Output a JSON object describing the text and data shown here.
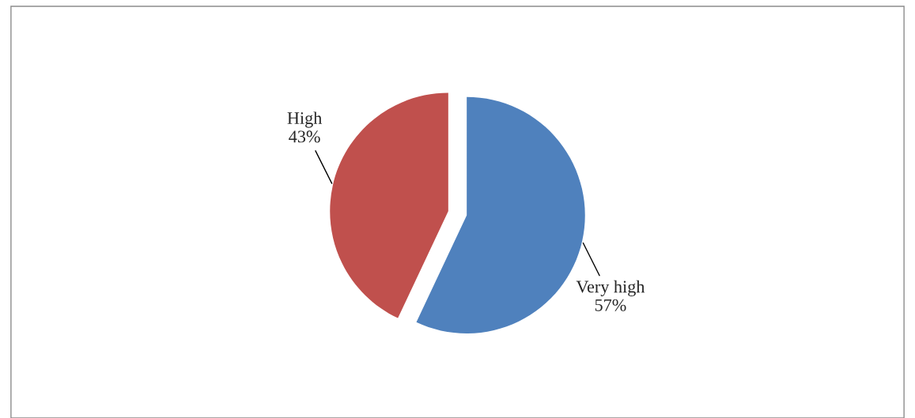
{
  "chart_data": {
    "type": "pie",
    "categories": [
      "Very high",
      "High"
    ],
    "values": [
      57,
      43
    ],
    "colors": [
      "#4f81bd",
      "#c0504d"
    ],
    "value_labels": [
      "57%",
      "43%"
    ],
    "legend": false
  }
}
